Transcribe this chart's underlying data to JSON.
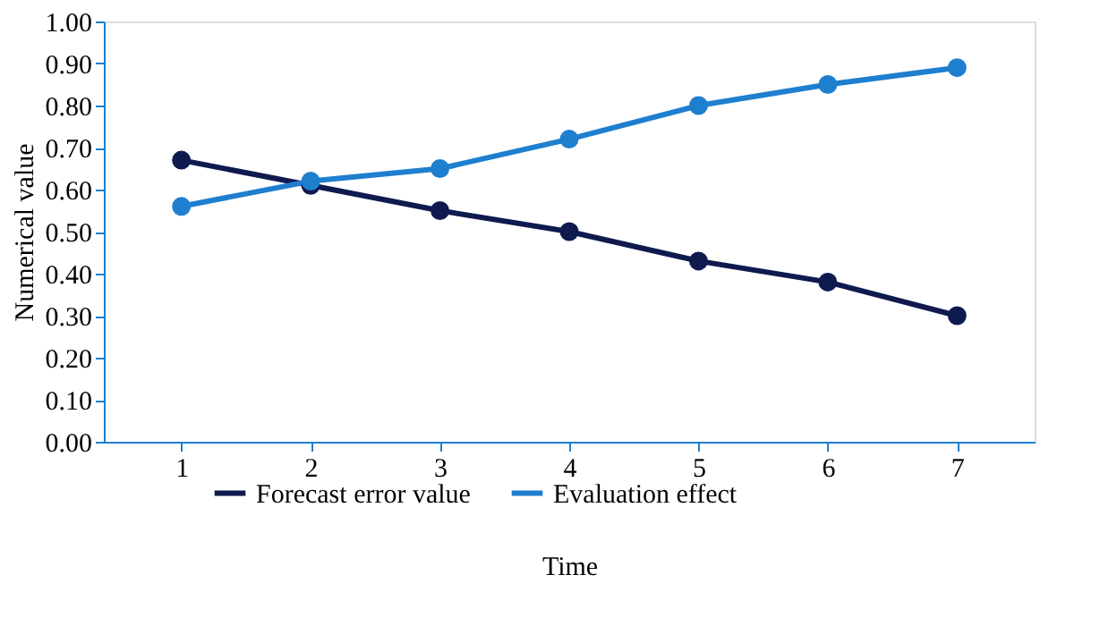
{
  "chart_data": {
    "type": "line",
    "xlabel": "Time",
    "ylabel": "Numerical value",
    "categories": [
      "1",
      "2",
      "3",
      "4",
      "5",
      "6",
      "7"
    ],
    "series": [
      {
        "name": "Forecast error value",
        "color": "#0f1a4f",
        "values": [
          0.67,
          0.61,
          0.55,
          0.5,
          0.43,
          0.38,
          0.3
        ]
      },
      {
        "name": "Evaluation effect",
        "color": "#1f7fcf",
        "values": [
          0.56,
          0.62,
          0.65,
          0.72,
          0.8,
          0.85,
          0.89
        ]
      }
    ],
    "ylim": [
      0,
      1
    ],
    "yticks": [
      {
        "value": 0,
        "label": "0.00"
      },
      {
        "value": 0.1,
        "label": "0.10"
      },
      {
        "value": 0.2,
        "label": "0.20"
      },
      {
        "value": 0.3,
        "label": "0.30"
      },
      {
        "value": 0.4,
        "label": "0.40"
      },
      {
        "value": 0.5,
        "label": "0.50"
      },
      {
        "value": 0.6,
        "label": "0.60"
      },
      {
        "value": 0.7,
        "label": "0.70"
      },
      {
        "value": 0.8,
        "label": "0.80"
      },
      {
        "value": 0.9,
        "label": "0.90"
      },
      {
        "value": 1,
        "label": "1.00"
      }
    ],
    "grid": false,
    "legend": "bottom",
    "marker": "circle",
    "line_style": "solid"
  }
}
